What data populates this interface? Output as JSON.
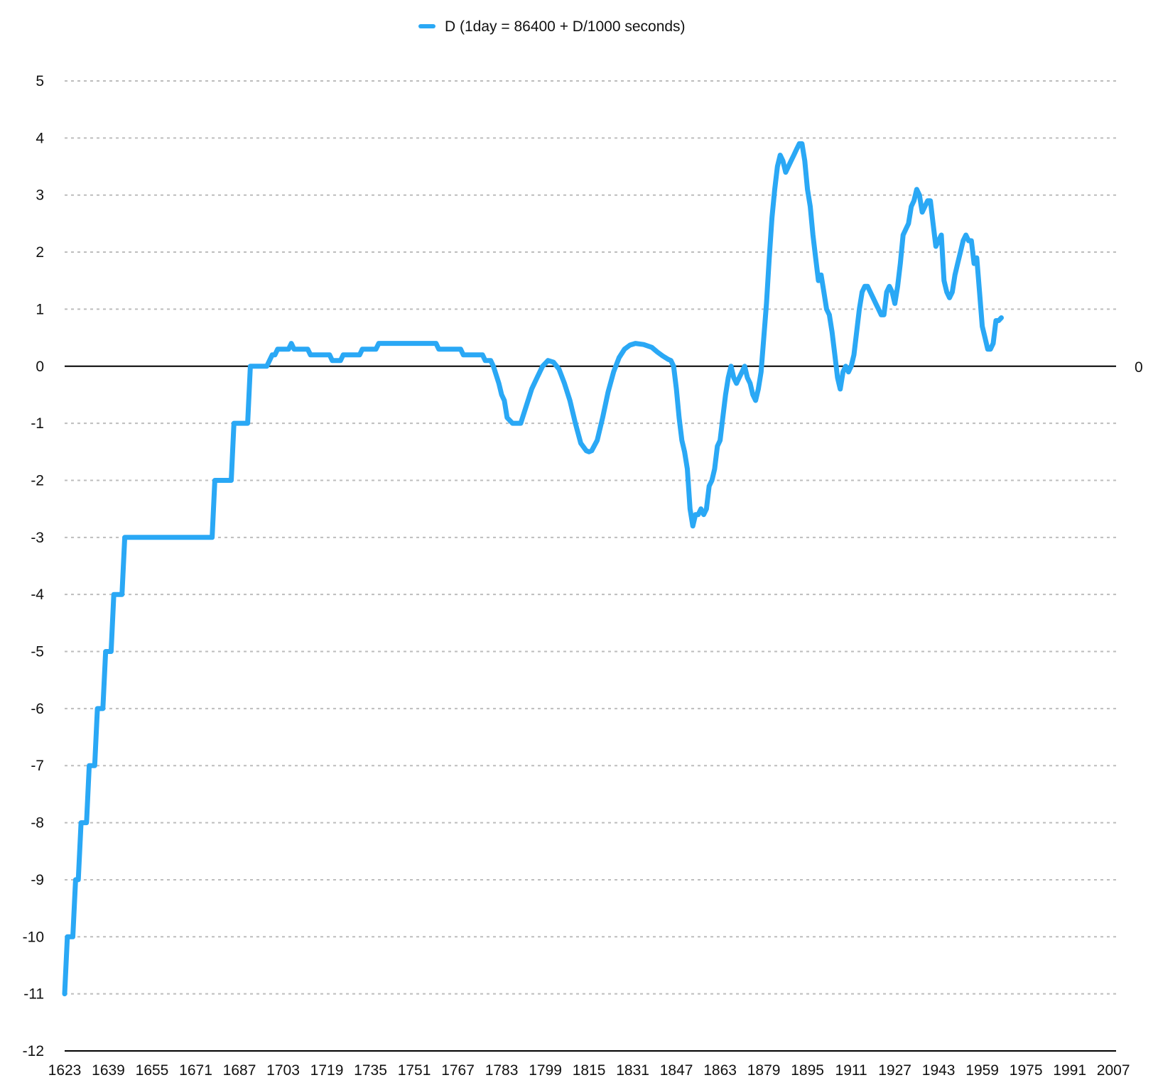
{
  "chart_data": {
    "type": "line",
    "title": "",
    "xlabel": "",
    "ylabel": "",
    "xlim": [
      1623,
      2008
    ],
    "ylim": [
      -12,
      5
    ],
    "x_ticks": [
      1623,
      1639,
      1655,
      1671,
      1687,
      1703,
      1719,
      1735,
      1751,
      1767,
      1783,
      1799,
      1815,
      1831,
      1847,
      1863,
      1879,
      1895,
      1911,
      1927,
      1943,
      1959,
      1975,
      1991,
      2007
    ],
    "y_ticks": [
      5,
      4,
      3,
      2,
      1,
      0,
      -1,
      -2,
      -3,
      -4,
      -5,
      -6,
      -7,
      -8,
      -9,
      -10,
      -11,
      -12
    ],
    "grid": "horizontal-dashed",
    "reference_line": {
      "value": 0,
      "label": "0"
    },
    "legend": {
      "position": "top-center"
    },
    "series": [
      {
        "name": "D (1day = 86400 + D/1000 seconds)",
        "color": "#2AA8F5",
        "points": [
          [
            1623,
            -11
          ],
          [
            1624,
            -10
          ],
          [
            1626,
            -10
          ],
          [
            1627,
            -9
          ],
          [
            1628,
            -9
          ],
          [
            1629,
            -8
          ],
          [
            1631,
            -8
          ],
          [
            1632,
            -7
          ],
          [
            1634,
            -7
          ],
          [
            1635,
            -6
          ],
          [
            1637,
            -6
          ],
          [
            1638,
            -5
          ],
          [
            1640,
            -5
          ],
          [
            1641,
            -4
          ],
          [
            1644,
            -4
          ],
          [
            1645,
            -3
          ],
          [
            1677,
            -3
          ],
          [
            1678,
            -2
          ],
          [
            1684,
            -2
          ],
          [
            1685,
            -1
          ],
          [
            1690,
            -1
          ],
          [
            1691,
            0
          ],
          [
            1697,
            0
          ],
          [
            1699,
            0.2
          ],
          [
            1700,
            0.2
          ],
          [
            1701,
            0.3
          ],
          [
            1705,
            0.3
          ],
          [
            1706,
            0.4
          ],
          [
            1707,
            0.3
          ],
          [
            1712,
            0.3
          ],
          [
            1713,
            0.2
          ],
          [
            1720,
            0.2
          ],
          [
            1721,
            0.1
          ],
          [
            1724,
            0.1
          ],
          [
            1725,
            0.2
          ],
          [
            1731,
            0.2
          ],
          [
            1732,
            0.3
          ],
          [
            1737,
            0.3
          ],
          [
            1738,
            0.4
          ],
          [
            1759,
            0.4
          ],
          [
            1760,
            0.3
          ],
          [
            1768,
            0.3
          ],
          [
            1769,
            0.2
          ],
          [
            1776,
            0.2
          ],
          [
            1777,
            0.1
          ],
          [
            1779,
            0.1
          ],
          [
            1780,
            0
          ],
          [
            1782,
            -0.3
          ],
          [
            1783,
            -0.5
          ],
          [
            1784,
            -0.6
          ],
          [
            1785,
            -0.9
          ],
          [
            1787,
            -1
          ],
          [
            1790,
            -1
          ],
          [
            1792,
            -0.7
          ],
          [
            1794,
            -0.4
          ],
          [
            1796,
            -0.2
          ],
          [
            1798,
            0
          ],
          [
            1800,
            0.1
          ],
          [
            1802,
            0.07
          ],
          [
            1804,
            -0.05
          ],
          [
            1806,
            -0.3
          ],
          [
            1808,
            -0.6
          ],
          [
            1810,
            -1
          ],
          [
            1812,
            -1.35
          ],
          [
            1814,
            -1.48
          ],
          [
            1815,
            -1.5
          ],
          [
            1816,
            -1.48
          ],
          [
            1818,
            -1.3
          ],
          [
            1820,
            -0.9
          ],
          [
            1822,
            -0.45
          ],
          [
            1824,
            -0.1
          ],
          [
            1826,
            0.15
          ],
          [
            1828,
            0.3
          ],
          [
            1830,
            0.37
          ],
          [
            1832,
            0.4
          ],
          [
            1835,
            0.38
          ],
          [
            1838,
            0.33
          ],
          [
            1840,
            0.25
          ],
          [
            1842,
            0.18
          ],
          [
            1844,
            0.12
          ],
          [
            1845,
            0.1
          ],
          [
            1846,
            0
          ],
          [
            1847,
            -0.4
          ],
          [
            1848,
            -0.9
          ],
          [
            1849,
            -1.3
          ],
          [
            1850,
            -1.5
          ],
          [
            1851,
            -1.8
          ],
          [
            1852,
            -2.5
          ],
          [
            1853,
            -2.8
          ],
          [
            1854,
            -2.6
          ],
          [
            1855,
            -2.6
          ],
          [
            1856,
            -2.5
          ],
          [
            1857,
            -2.6
          ],
          [
            1858,
            -2.5
          ],
          [
            1859,
            -2.1
          ],
          [
            1860,
            -2
          ],
          [
            1861,
            -1.8
          ],
          [
            1862,
            -1.4
          ],
          [
            1863,
            -1.3
          ],
          [
            1864,
            -0.9
          ],
          [
            1865,
            -0.5
          ],
          [
            1866,
            -0.2
          ],
          [
            1867,
            0
          ],
          [
            1868,
            -0.2
          ],
          [
            1869,
            -0.3
          ],
          [
            1870,
            -0.2
          ],
          [
            1871,
            -0.1
          ],
          [
            1872,
            0
          ],
          [
            1873,
            -0.2
          ],
          [
            1874,
            -0.3
          ],
          [
            1875,
            -0.5
          ],
          [
            1876,
            -0.6
          ],
          [
            1877,
            -0.4
          ],
          [
            1878,
            -0.1
          ],
          [
            1879,
            0.5
          ],
          [
            1880,
            1.1
          ],
          [
            1881,
            1.9
          ],
          [
            1882,
            2.6
          ],
          [
            1883,
            3.1
          ],
          [
            1884,
            3.5
          ],
          [
            1885,
            3.7
          ],
          [
            1886,
            3.6
          ],
          [
            1887,
            3.4
          ],
          [
            1888,
            3.5
          ],
          [
            1889,
            3.6
          ],
          [
            1890,
            3.7
          ],
          [
            1891,
            3.8
          ],
          [
            1892,
            3.9
          ],
          [
            1893,
            3.9
          ],
          [
            1894,
            3.6
          ],
          [
            1895,
            3.1
          ],
          [
            1896,
            2.8
          ],
          [
            1897,
            2.3
          ],
          [
            1898,
            1.9
          ],
          [
            1899,
            1.5
          ],
          [
            1900,
            1.6
          ],
          [
            1901,
            1.3
          ],
          [
            1902,
            1
          ],
          [
            1903,
            0.9
          ],
          [
            1904,
            0.6
          ],
          [
            1905,
            0.2
          ],
          [
            1906,
            -0.2
          ],
          [
            1907,
            -0.4
          ],
          [
            1908,
            -0.1
          ],
          [
            1909,
            0
          ],
          [
            1910,
            -0.1
          ],
          [
            1911,
            0
          ],
          [
            1912,
            0.2
          ],
          [
            1913,
            0.6
          ],
          [
            1914,
            1
          ],
          [
            1915,
            1.3
          ],
          [
            1916,
            1.4
          ],
          [
            1917,
            1.4
          ],
          [
            1918,
            1.3
          ],
          [
            1919,
            1.2
          ],
          [
            1920,
            1.1
          ],
          [
            1921,
            1
          ],
          [
            1922,
            0.9
          ],
          [
            1923,
            0.9
          ],
          [
            1924,
            1.3
          ],
          [
            1925,
            1.4
          ],
          [
            1926,
            1.3
          ],
          [
            1927,
            1.1
          ],
          [
            1928,
            1.4
          ],
          [
            1929,
            1.8
          ],
          [
            1930,
            2.3
          ],
          [
            1931,
            2.4
          ],
          [
            1932,
            2.5
          ],
          [
            1933,
            2.8
          ],
          [
            1934,
            2.9
          ],
          [
            1935,
            3.1
          ],
          [
            1936,
            3
          ],
          [
            1937,
            2.7
          ],
          [
            1938,
            2.8
          ],
          [
            1939,
            2.9
          ],
          [
            1940,
            2.9
          ],
          [
            1941,
            2.5
          ],
          [
            1942,
            2.1
          ],
          [
            1943,
            2.2
          ],
          [
            1944,
            2.3
          ],
          [
            1945,
            1.5
          ],
          [
            1946,
            1.3
          ],
          [
            1947,
            1.2
          ],
          [
            1948,
            1.3
          ],
          [
            1949,
            1.6
          ],
          [
            1950,
            1.8
          ],
          [
            1951,
            2
          ],
          [
            1952,
            2.2
          ],
          [
            1953,
            2.3
          ],
          [
            1954,
            2.2
          ],
          [
            1955,
            2.2
          ],
          [
            1956,
            1.8
          ],
          [
            1957,
            1.9
          ],
          [
            1958,
            1.3
          ],
          [
            1959,
            0.7
          ],
          [
            1960,
            0.5
          ],
          [
            1961,
            0.3
          ],
          [
            1962,
            0.3
          ],
          [
            1963,
            0.4
          ],
          [
            1964,
            0.8
          ],
          [
            1965,
            0.8
          ],
          [
            1966,
            0.85
          ]
        ]
      }
    ]
  }
}
